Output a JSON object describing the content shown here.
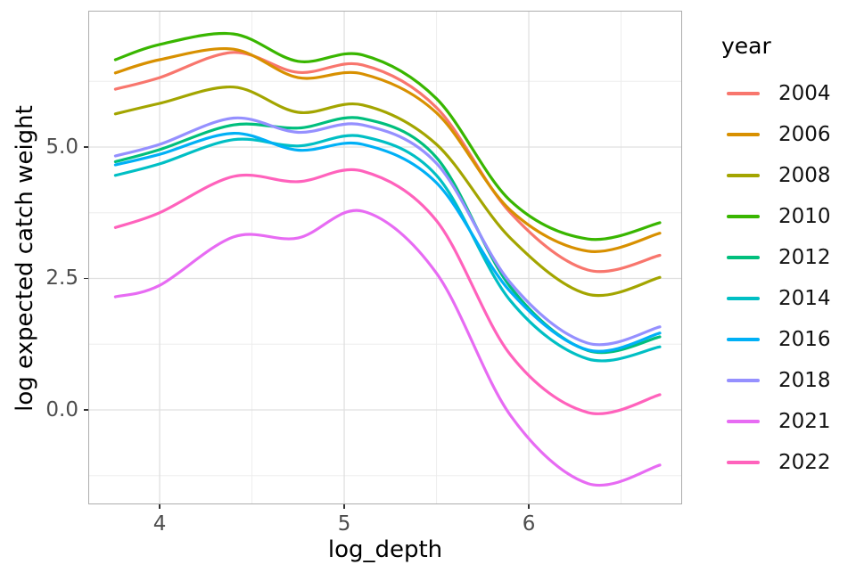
{
  "chart_data": {
    "type": "line",
    "title": "",
    "xlabel": "log_depth",
    "ylabel": "log expected catch weight",
    "legend_title": "year",
    "legend_position": "right",
    "grid": true,
    "panel_background": "#FFFFFF",
    "colors": {
      "grid_major": "#E0E0E0",
      "grid_minor": "#EDEDED",
      "panel_border": "#ADADAD",
      "tick_text": "#4D4D4D",
      "tick_mark": "#333333",
      "title_text": "#000000"
    },
    "xlim": [
      3.618,
      6.826
    ],
    "ylim": [
      -1.78,
      7.576
    ],
    "x_ticks": {
      "values": [
        4,
        5,
        6
      ],
      "labels": [
        "4",
        "5",
        "6"
      ]
    },
    "y_ticks": {
      "values": [
        0.0,
        2.5,
        5.0
      ],
      "labels": [
        "0.0",
        "2.5",
        "5.0"
      ]
    },
    "x_minor": [
      4.5,
      5.5,
      6.5
    ],
    "y_minor": [
      -1.25,
      1.25,
      3.75,
      6.25
    ],
    "x": [
      3.76,
      4.0,
      4.4,
      4.75,
      5.1,
      5.5,
      5.9,
      6.32,
      6.71
    ],
    "series": [
      {
        "name": "2004",
        "color": "#F8766D",
        "values": [
          6.1,
          6.32,
          6.8,
          6.42,
          6.56,
          5.75,
          3.75,
          2.66,
          2.94
        ]
      },
      {
        "name": "2006",
        "color": "#D89000",
        "values": [
          6.41,
          6.66,
          6.86,
          6.32,
          6.39,
          5.65,
          3.8,
          3.02,
          3.36
        ]
      },
      {
        "name": "2008",
        "color": "#A3A500",
        "values": [
          5.63,
          5.83,
          6.14,
          5.66,
          5.8,
          5.05,
          3.27,
          2.2,
          2.52
        ]
      },
      {
        "name": "2010",
        "color": "#39B600",
        "values": [
          6.66,
          6.95,
          7.15,
          6.63,
          6.75,
          5.92,
          3.98,
          3.25,
          3.56
        ]
      },
      {
        "name": "2012",
        "color": "#00BF7D",
        "values": [
          4.72,
          4.95,
          5.42,
          5.36,
          5.54,
          4.8,
          2.34,
          1.13,
          1.39
        ]
      },
      {
        "name": "2014",
        "color": "#00BFC4",
        "values": [
          4.46,
          4.68,
          5.14,
          5.02,
          5.2,
          4.46,
          2.08,
          0.97,
          1.2
        ]
      },
      {
        "name": "2016",
        "color": "#00B0F6",
        "values": [
          4.66,
          4.86,
          5.26,
          4.94,
          5.05,
          4.32,
          2.25,
          1.14,
          1.46
        ]
      },
      {
        "name": "2018",
        "color": "#9590FF",
        "values": [
          4.83,
          5.05,
          5.55,
          5.28,
          5.42,
          4.69,
          2.42,
          1.27,
          1.58
        ]
      },
      {
        "name": "2021",
        "color": "#E76BF3",
        "values": [
          2.15,
          2.37,
          3.29,
          3.27,
          3.78,
          2.6,
          -0.1,
          -1.4,
          -1.05
        ]
      },
      {
        "name": "2022",
        "color": "#FF62BC",
        "values": [
          3.47,
          3.75,
          4.44,
          4.34,
          4.54,
          3.6,
          1.05,
          -0.05,
          0.29
        ]
      }
    ]
  }
}
